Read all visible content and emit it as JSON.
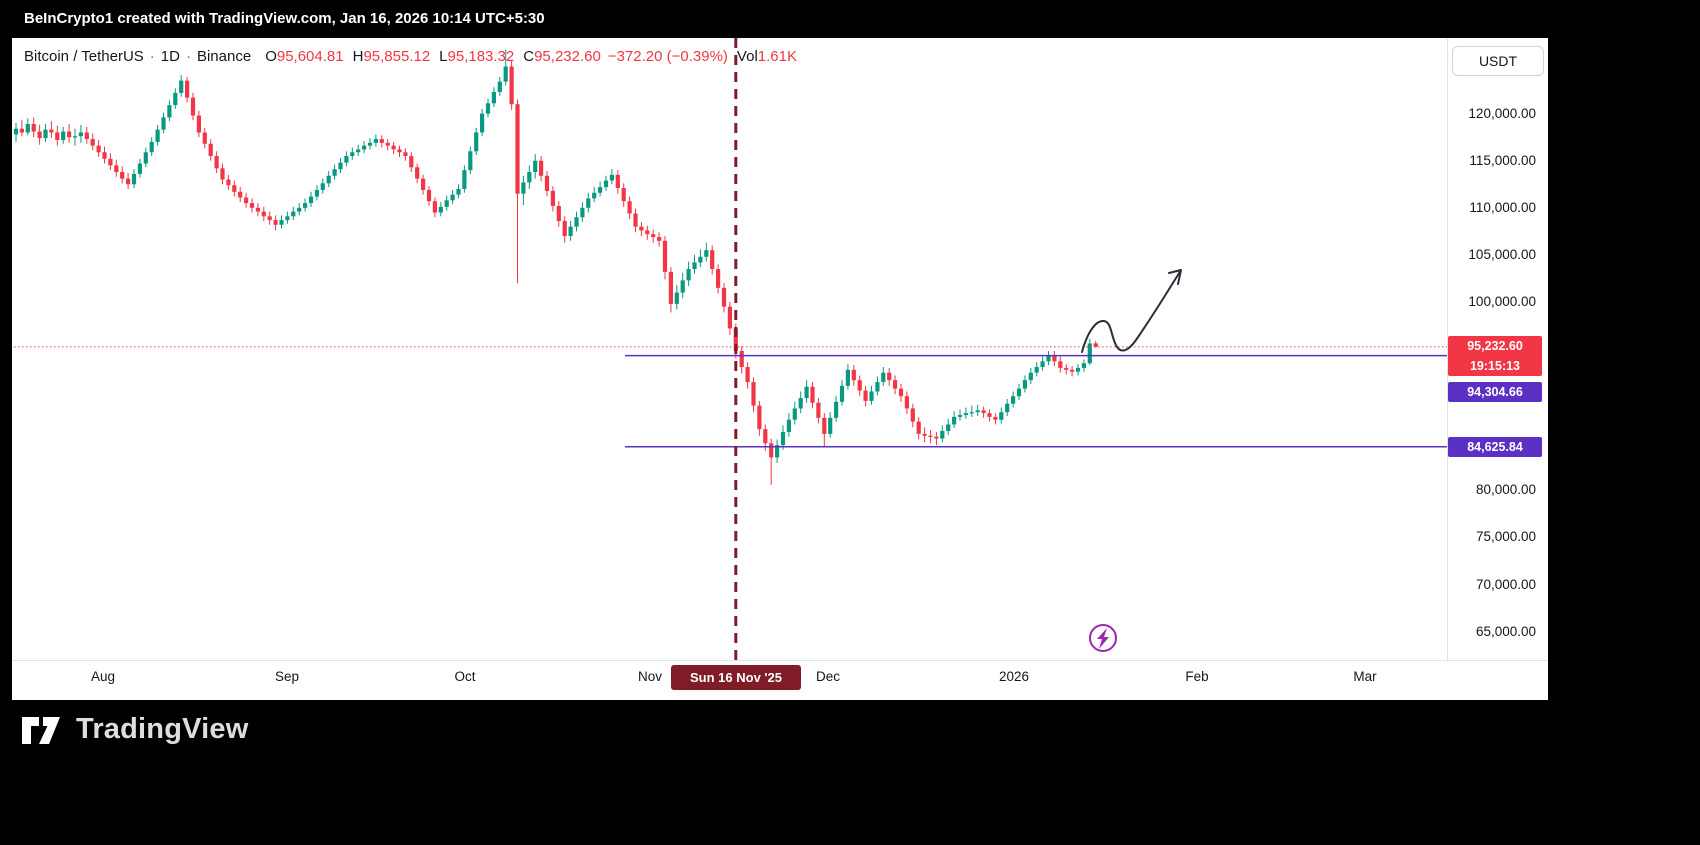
{
  "top_bar": {
    "attribution": "BeInCrypto1 created with TradingView.com, Jan 16, 2026 10:14 UTC+5:30"
  },
  "header": {
    "symbol": "Bitcoin / TetherUS",
    "sep": "·",
    "interval": "1D",
    "exchange": "Binance",
    "ohlc": {
      "o_label": "O",
      "open": "95,604.81",
      "h_label": "H",
      "high": "95,855.12",
      "l_label": "L",
      "low": "95,183.32",
      "c_label": "C",
      "close": "95,232.60",
      "change": "−372.20 (−0.39%)",
      "vol_label": "Vol",
      "volume": "1.61K"
    }
  },
  "currency_button": "USDT",
  "colors": {
    "up": "#089981",
    "down": "#f23645",
    "purple": "#5a31c4",
    "dark_red": "#801c27",
    "magenta": "#9c27b0",
    "arrow": "#2a2e39"
  },
  "price_axis": {
    "labels": [
      {
        "text": "120,000.00",
        "price": 120000
      },
      {
        "text": "115,000.00",
        "price": 115000
      },
      {
        "text": "110,000.00",
        "price": 110000
      },
      {
        "text": "105,000.00",
        "price": 105000
      },
      {
        "text": "100,000.00",
        "price": 100000
      },
      {
        "text": "80,000.00",
        "price": 80000
      },
      {
        "text": "75,000.00",
        "price": 75000
      },
      {
        "text": "70,000.00",
        "price": 70000
      },
      {
        "text": "65,000.00",
        "price": 65000
      }
    ],
    "current_tag": {
      "price_text": "95,232.60",
      "countdown": "19:15:13"
    },
    "level_tags": [
      {
        "text": "94,304.66"
      },
      {
        "text": "84,625.84"
      }
    ]
  },
  "time_axis": {
    "labels": [
      {
        "text": "Aug",
        "x": 91
      },
      {
        "text": "Sep",
        "x": 275
      },
      {
        "text": "Oct",
        "x": 453
      },
      {
        "text": "Nov",
        "x": 638
      },
      {
        "text": "Dec",
        "x": 816
      },
      {
        "text": "2026",
        "x": 1002
      },
      {
        "text": "Feb",
        "x": 1185
      },
      {
        "text": "Mar",
        "x": 1353
      }
    ],
    "date_tag": {
      "text": "Sun 16 Nov '25"
    }
  },
  "watermark": {
    "brand": "TradingView"
  },
  "chart_data": {
    "type": "candlestick",
    "title": "Bitcoin / TetherUS · 1D · Binance",
    "interval_per_candle": "1 day",
    "x_axis_labels": [
      "Aug",
      "Sep",
      "Oct",
      "Nov",
      "Dec",
      "2026",
      "Feb",
      "Mar"
    ],
    "ylim": [
      63000,
      128000
    ],
    "current_price": 95232.6,
    "horizontal_levels": [
      94304.66,
      84625.84
    ],
    "vertical_marker": {
      "label": "Sun 16 Nov '25",
      "candle_index": 122
    },
    "annotations": [
      "upward-squiggle-trend-arrow",
      "purple-lightning-circle-marker"
    ],
    "candles": [
      [
        117800,
        119000,
        117000,
        118400
      ],
      [
        118400,
        119300,
        117600,
        118000
      ],
      [
        118000,
        119500,
        117700,
        118900
      ],
      [
        118900,
        119600,
        117500,
        118100
      ],
      [
        118100,
        118800,
        116700,
        117400
      ],
      [
        117400,
        118900,
        117000,
        118300
      ],
      [
        118300,
        119200,
        117400,
        118000
      ],
      [
        118000,
        118700,
        116600,
        117200
      ],
      [
        117200,
        118600,
        116800,
        118100
      ],
      [
        118100,
        118900,
        116900,
        117500
      ],
      [
        117500,
        118400,
        116600,
        117600
      ],
      [
        117600,
        118800,
        116900,
        118000
      ],
      [
        118000,
        118600,
        116800,
        117300
      ],
      [
        117300,
        117900,
        116100,
        116600
      ],
      [
        116600,
        117200,
        115400,
        115900
      ],
      [
        115900,
        116500,
        114700,
        115200
      ],
      [
        115200,
        115800,
        114000,
        114500
      ],
      [
        114500,
        115100,
        113300,
        113800
      ],
      [
        113800,
        114400,
        112600,
        113100
      ],
      [
        113100,
        113700,
        112000,
        112500
      ],
      [
        112500,
        114100,
        112100,
        113600
      ],
      [
        113600,
        115200,
        113200,
        114700
      ],
      [
        114700,
        116400,
        114300,
        115900
      ],
      [
        115900,
        117500,
        115500,
        117000
      ],
      [
        117000,
        118800,
        116600,
        118300
      ],
      [
        118300,
        120100,
        117900,
        119600
      ],
      [
        119600,
        121400,
        119200,
        120900
      ],
      [
        120900,
        122700,
        120500,
        122200
      ],
      [
        122200,
        124100,
        121800,
        123500
      ],
      [
        123500,
        123900,
        121200,
        121700
      ],
      [
        121700,
        122200,
        119300,
        119800
      ],
      [
        119800,
        120300,
        117500,
        118000
      ],
      [
        118000,
        118500,
        116300,
        116800
      ],
      [
        116800,
        117300,
        115000,
        115500
      ],
      [
        115500,
        116000,
        113700,
        114200
      ],
      [
        114200,
        114700,
        112500,
        113000
      ],
      [
        113000,
        113500,
        111900,
        112400
      ],
      [
        112400,
        112900,
        111200,
        111700
      ],
      [
        111700,
        112200,
        110600,
        111100
      ],
      [
        111100,
        111600,
        110000,
        110500
      ],
      [
        110500,
        111000,
        109500,
        110000
      ],
      [
        110000,
        110500,
        109100,
        109600
      ],
      [
        109600,
        110100,
        108600,
        109100
      ],
      [
        109100,
        109600,
        108200,
        108700
      ],
      [
        108700,
        109200,
        107600,
        108200
      ],
      [
        108200,
        109200,
        107800,
        108700
      ],
      [
        108700,
        109600,
        108300,
        109100
      ],
      [
        109100,
        110100,
        108700,
        109600
      ],
      [
        109600,
        110500,
        109200,
        110000
      ],
      [
        110000,
        111000,
        109600,
        110500
      ],
      [
        110500,
        111700,
        110100,
        111200
      ],
      [
        111200,
        112400,
        110800,
        111900
      ],
      [
        111900,
        113100,
        111500,
        112600
      ],
      [
        112600,
        113900,
        112200,
        113400
      ],
      [
        113400,
        114600,
        113000,
        114100
      ],
      [
        114100,
        115300,
        113700,
        114800
      ],
      [
        114800,
        116000,
        114400,
        115500
      ],
      [
        115500,
        116400,
        115100,
        115900
      ],
      [
        115900,
        116700,
        115500,
        116200
      ],
      [
        116200,
        117100,
        115800,
        116600
      ],
      [
        116600,
        117400,
        116200,
        116900
      ],
      [
        116900,
        117800,
        116500,
        117300
      ],
      [
        117300,
        117700,
        116400,
        116900
      ],
      [
        116900,
        117300,
        116100,
        116600
      ],
      [
        116600,
        117000,
        115700,
        116200
      ],
      [
        116200,
        116600,
        115400,
        115900
      ],
      [
        115900,
        116300,
        115000,
        115500
      ],
      [
        115500,
        115900,
        113800,
        114300
      ],
      [
        114300,
        114700,
        112600,
        113100
      ],
      [
        113100,
        113500,
        111400,
        111900
      ],
      [
        111900,
        112300,
        110200,
        110700
      ],
      [
        110700,
        111100,
        109000,
        109500
      ],
      [
        109500,
        110600,
        109100,
        110100
      ],
      [
        110100,
        111300,
        109700,
        110800
      ],
      [
        110800,
        111900,
        110400,
        111400
      ],
      [
        111400,
        112500,
        111000,
        112000
      ],
      [
        112000,
        114500,
        111600,
        114000
      ],
      [
        114000,
        116500,
        113600,
        116000
      ],
      [
        116000,
        118500,
        115600,
        118000
      ],
      [
        118000,
        120500,
        117600,
        120000
      ],
      [
        120000,
        121600,
        119600,
        121100
      ],
      [
        121100,
        122800,
        120700,
        122300
      ],
      [
        122300,
        123900,
        121900,
        123400
      ],
      [
        123400,
        126800,
        123000,
        125000
      ],
      [
        125000,
        125600,
        120400,
        121000
      ],
      [
        121000,
        121500,
        102000,
        111500
      ],
      [
        111500,
        113400,
        110300,
        112700
      ],
      [
        112700,
        114500,
        112000,
        113800
      ],
      [
        113800,
        115700,
        113100,
        115000
      ],
      [
        115000,
        115500,
        112800,
        113400
      ],
      [
        113400,
        113900,
        111200,
        111800
      ],
      [
        111800,
        112300,
        109600,
        110200
      ],
      [
        110200,
        110700,
        108000,
        108600
      ],
      [
        108600,
        109100,
        106300,
        107000
      ],
      [
        107000,
        108600,
        106500,
        108000
      ],
      [
        108000,
        109600,
        107500,
        109000
      ],
      [
        109000,
        110600,
        108500,
        110000
      ],
      [
        110000,
        111600,
        109500,
        111000
      ],
      [
        111000,
        112200,
        110600,
        111600
      ],
      [
        111600,
        112800,
        111200,
        112200
      ],
      [
        112200,
        113400,
        111800,
        112900
      ],
      [
        112900,
        114100,
        112500,
        113500
      ],
      [
        113500,
        114000,
        111500,
        112100
      ],
      [
        112100,
        112600,
        110100,
        110700
      ],
      [
        110700,
        111200,
        108800,
        109400
      ],
      [
        109400,
        109900,
        107400,
        108000
      ],
      [
        108000,
        108500,
        107000,
        107600
      ],
      [
        107600,
        108100,
        106600,
        107200
      ],
      [
        107200,
        107700,
        106300,
        106900
      ],
      [
        106900,
        107400,
        105900,
        106500
      ],
      [
        106500,
        107000,
        102400,
        103200
      ],
      [
        103200,
        103700,
        98900,
        99800
      ],
      [
        99800,
        101800,
        99200,
        101000
      ],
      [
        101000,
        103100,
        100400,
        102300
      ],
      [
        102300,
        104300,
        101700,
        103500
      ],
      [
        103500,
        105000,
        103000,
        104200
      ],
      [
        104200,
        105600,
        103700,
        104800
      ],
      [
        104800,
        106300,
        104300,
        105500
      ],
      [
        105500,
        106000,
        102900,
        103500
      ],
      [
        103500,
        104000,
        100900,
        101500
      ],
      [
        101500,
        102000,
        98900,
        99500
      ],
      [
        99500,
        100000,
        96500,
        97200
      ],
      [
        97200,
        97700,
        94000,
        94800
      ],
      [
        94800,
        95300,
        92400,
        93100
      ],
      [
        93100,
        93600,
        90800,
        91500
      ],
      [
        91500,
        92000,
        88300,
        89000
      ],
      [
        89000,
        89500,
        85800,
        86500
      ],
      [
        86500,
        87000,
        84200,
        85000
      ],
      [
        85000,
        85500,
        80600,
        83500
      ],
      [
        83500,
        85400,
        82900,
        84800
      ],
      [
        84800,
        86900,
        84300,
        86200
      ],
      [
        86200,
        88200,
        85700,
        87500
      ],
      [
        87500,
        89400,
        87000,
        88700
      ],
      [
        88700,
        90500,
        88200,
        89800
      ],
      [
        89800,
        91700,
        89300,
        91000
      ],
      [
        91000,
        91500,
        88700,
        89300
      ],
      [
        89300,
        89800,
        87100,
        87700
      ],
      [
        87700,
        88200,
        84600,
        86000
      ],
      [
        86000,
        88300,
        85600,
        87700
      ],
      [
        87700,
        90000,
        87300,
        89400
      ],
      [
        89400,
        91700,
        89000,
        91100
      ],
      [
        91100,
        93400,
        90700,
        92800
      ],
      [
        92800,
        93300,
        91100,
        91700
      ],
      [
        91700,
        92200,
        90000,
        90600
      ],
      [
        90600,
        91100,
        88900,
        89500
      ],
      [
        89500,
        91100,
        89100,
        90500
      ],
      [
        90500,
        92100,
        90100,
        91500
      ],
      [
        91500,
        93100,
        91100,
        92500
      ],
      [
        92500,
        93000,
        91100,
        91700
      ],
      [
        91700,
        92200,
        90200,
        90800
      ],
      [
        90800,
        91300,
        89400,
        90000
      ],
      [
        90000,
        90500,
        88100,
        88700
      ],
      [
        88700,
        89200,
        86700,
        87300
      ],
      [
        87300,
        87800,
        85400,
        86000
      ],
      [
        86000,
        86700,
        85100,
        85800
      ],
      [
        85800,
        86400,
        85000,
        85700
      ],
      [
        85700,
        86200,
        84800,
        85500
      ],
      [
        85500,
        86900,
        85100,
        86300
      ],
      [
        86300,
        87600,
        85900,
        87000
      ],
      [
        87000,
        88400,
        86600,
        87800
      ],
      [
        87800,
        88600,
        87400,
        88000
      ],
      [
        88000,
        88800,
        87600,
        88200
      ],
      [
        88200,
        89000,
        87800,
        88300
      ],
      [
        88300,
        89100,
        87900,
        88500
      ],
      [
        88500,
        88900,
        87700,
        88200
      ],
      [
        88200,
        88600,
        87300,
        87800
      ],
      [
        87800,
        88200,
        87000,
        87500
      ],
      [
        87500,
        88800,
        87100,
        88300
      ],
      [
        88300,
        89700,
        87900,
        89200
      ],
      [
        89200,
        90500,
        88800,
        90000
      ],
      [
        90000,
        91300,
        89600,
        90800
      ],
      [
        90800,
        92200,
        90400,
        91700
      ],
      [
        91700,
        93000,
        91300,
        92500
      ],
      [
        92500,
        93600,
        92100,
        93100
      ],
      [
        93100,
        94200,
        92700,
        93700
      ],
      [
        93700,
        94800,
        93300,
        94300
      ],
      [
        94300,
        94800,
        93200,
        93700
      ],
      [
        93700,
        94200,
        92500,
        93000
      ],
      [
        93000,
        93400,
        92300,
        92800
      ],
      [
        92800,
        93200,
        92100,
        92600
      ],
      [
        92600,
        93400,
        92200,
        93000
      ],
      [
        93000,
        93900,
        92600,
        93500
      ],
      [
        93500,
        96100,
        93300,
        95600
      ],
      [
        95604.81,
        95855.12,
        95183.32,
        95232.6
      ]
    ]
  }
}
